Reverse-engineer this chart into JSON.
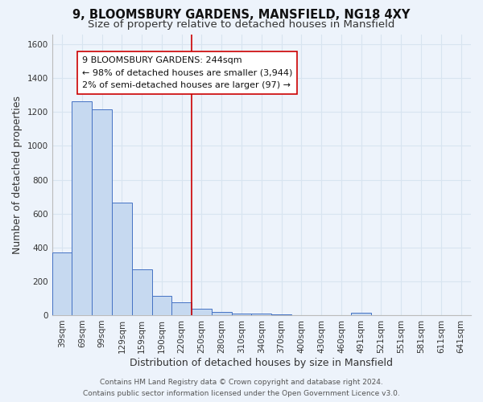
{
  "title": "9, BLOOMSBURY GARDENS, MANSFIELD, NG18 4XY",
  "subtitle": "Size of property relative to detached houses in Mansfield",
  "xlabel": "Distribution of detached houses by size in Mansfield",
  "ylabel": "Number of detached properties",
  "bar_labels": [
    "39sqm",
    "69sqm",
    "99sqm",
    "129sqm",
    "159sqm",
    "190sqm",
    "220sqm",
    "250sqm",
    "280sqm",
    "310sqm",
    "340sqm",
    "370sqm",
    "400sqm",
    "430sqm",
    "460sqm",
    "491sqm",
    "521sqm",
    "551sqm",
    "581sqm",
    "611sqm",
    "641sqm"
  ],
  "bar_values": [
    370,
    1265,
    1215,
    665,
    270,
    115,
    75,
    40,
    20,
    10,
    10,
    5,
    0,
    0,
    0,
    15,
    0,
    0,
    0,
    0,
    0
  ],
  "bar_color": "#c6d9f0",
  "bar_edge_color": "#4472c4",
  "vline_x": 6.5,
  "vline_color": "#cc0000",
  "ylim": [
    0,
    1660
  ],
  "yticks": [
    0,
    200,
    400,
    600,
    800,
    1000,
    1200,
    1400,
    1600
  ],
  "annotation_lines": [
    "9 BLOOMSBURY GARDENS: 244sqm",
    "← 98% of detached houses are smaller (3,944)",
    "2% of semi-detached houses are larger (97) →"
  ],
  "footer_line1": "Contains HM Land Registry data © Crown copyright and database right 2024.",
  "footer_line2": "Contains public sector information licensed under the Open Government Licence v3.0.",
  "bg_color": "#edf3fb",
  "grid_color": "#d8e4f0",
  "title_fontsize": 10.5,
  "subtitle_fontsize": 9.5,
  "axis_label_fontsize": 9,
  "tick_fontsize": 7.5,
  "annotation_fontsize": 8,
  "footer_fontsize": 6.5
}
